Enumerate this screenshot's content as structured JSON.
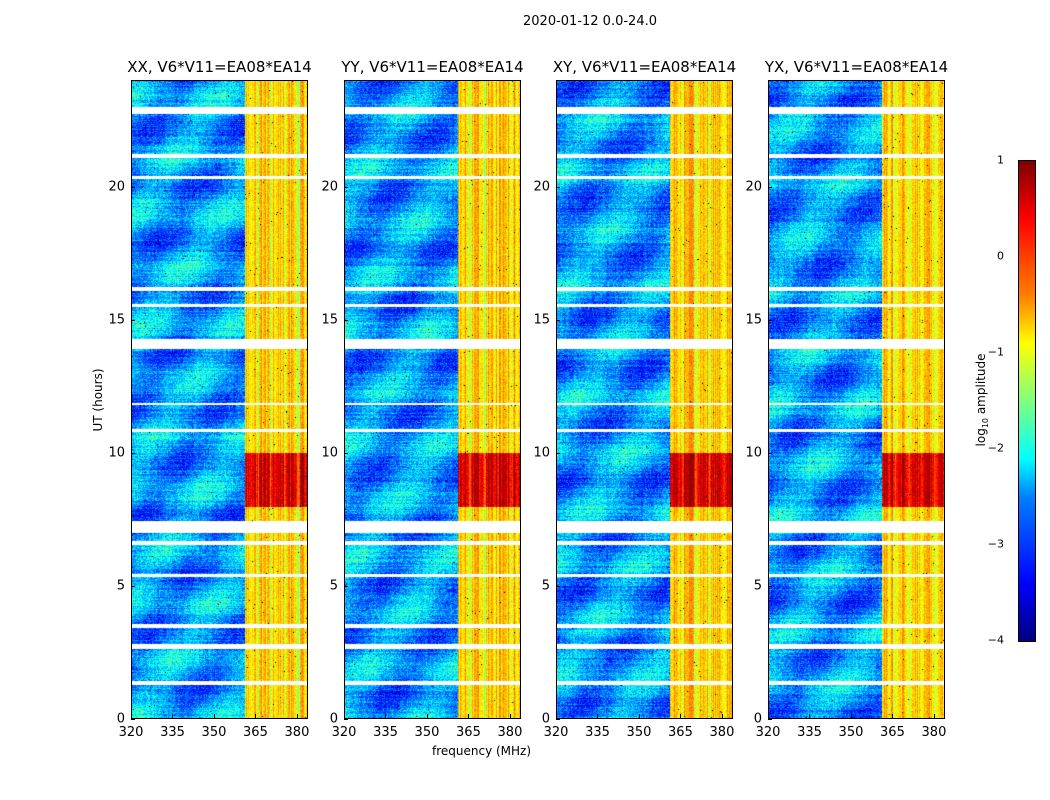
{
  "suptitle": "2020-01-12 0.0-24.0",
  "xlabel": "frequency (MHz)",
  "ylabel": "UT (hours)",
  "colorbar": {
    "label_main": "log",
    "label_sub": "10",
    "label_rest": " amplitude",
    "ticks": [
      "1",
      "0",
      "−1",
      "−2",
      "−3",
      "−4"
    ],
    "tick_values": [
      1,
      0,
      -1,
      -2,
      -3,
      -4
    ],
    "range": [
      -4,
      1
    ]
  },
  "chart_data": {
    "type": "heatmap",
    "colormap": "jet",
    "xlim": [
      320,
      384
    ],
    "ylim": [
      0,
      24
    ],
    "xticks": [
      "320",
      "335",
      "350",
      "365",
      "380"
    ],
    "xtick_values": [
      320,
      335,
      350,
      365,
      380
    ],
    "yticks": [
      "0",
      "5",
      "10",
      "15",
      "20"
    ],
    "ytick_values": [
      0,
      5,
      10,
      15,
      20
    ],
    "background_log_amplitude": -2.6,
    "rfi_band_mhz": [
      361,
      384
    ],
    "rfi_log_amplitude": -0.6,
    "rfi_peak_hours": [
      8,
      10
    ],
    "rfi_peak_log_amplitude": 0.6,
    "flagged_hours": [
      [
        22.75,
        23.0
      ],
      [
        21.1,
        21.25
      ],
      [
        20.3,
        20.4
      ],
      [
        16.1,
        16.25
      ],
      [
        15.5,
        15.6
      ],
      [
        13.9,
        14.3
      ],
      [
        11.8,
        11.9
      ],
      [
        10.8,
        10.9
      ],
      [
        7.0,
        7.45
      ],
      [
        6.55,
        6.7
      ],
      [
        5.35,
        5.45
      ],
      [
        3.45,
        3.6
      ],
      [
        2.65,
        2.85
      ],
      [
        1.3,
        1.45
      ]
    ],
    "panels": [
      {
        "title": "XX, V6*V11=EA08*EA14",
        "seed": 1
      },
      {
        "title": "YY, V6*V11=EA08*EA14",
        "seed": 2
      },
      {
        "title": "XY, V6*V11=EA08*EA14",
        "seed": 3
      },
      {
        "title": "YX, V6*V11=EA08*EA14",
        "seed": 4
      }
    ]
  }
}
